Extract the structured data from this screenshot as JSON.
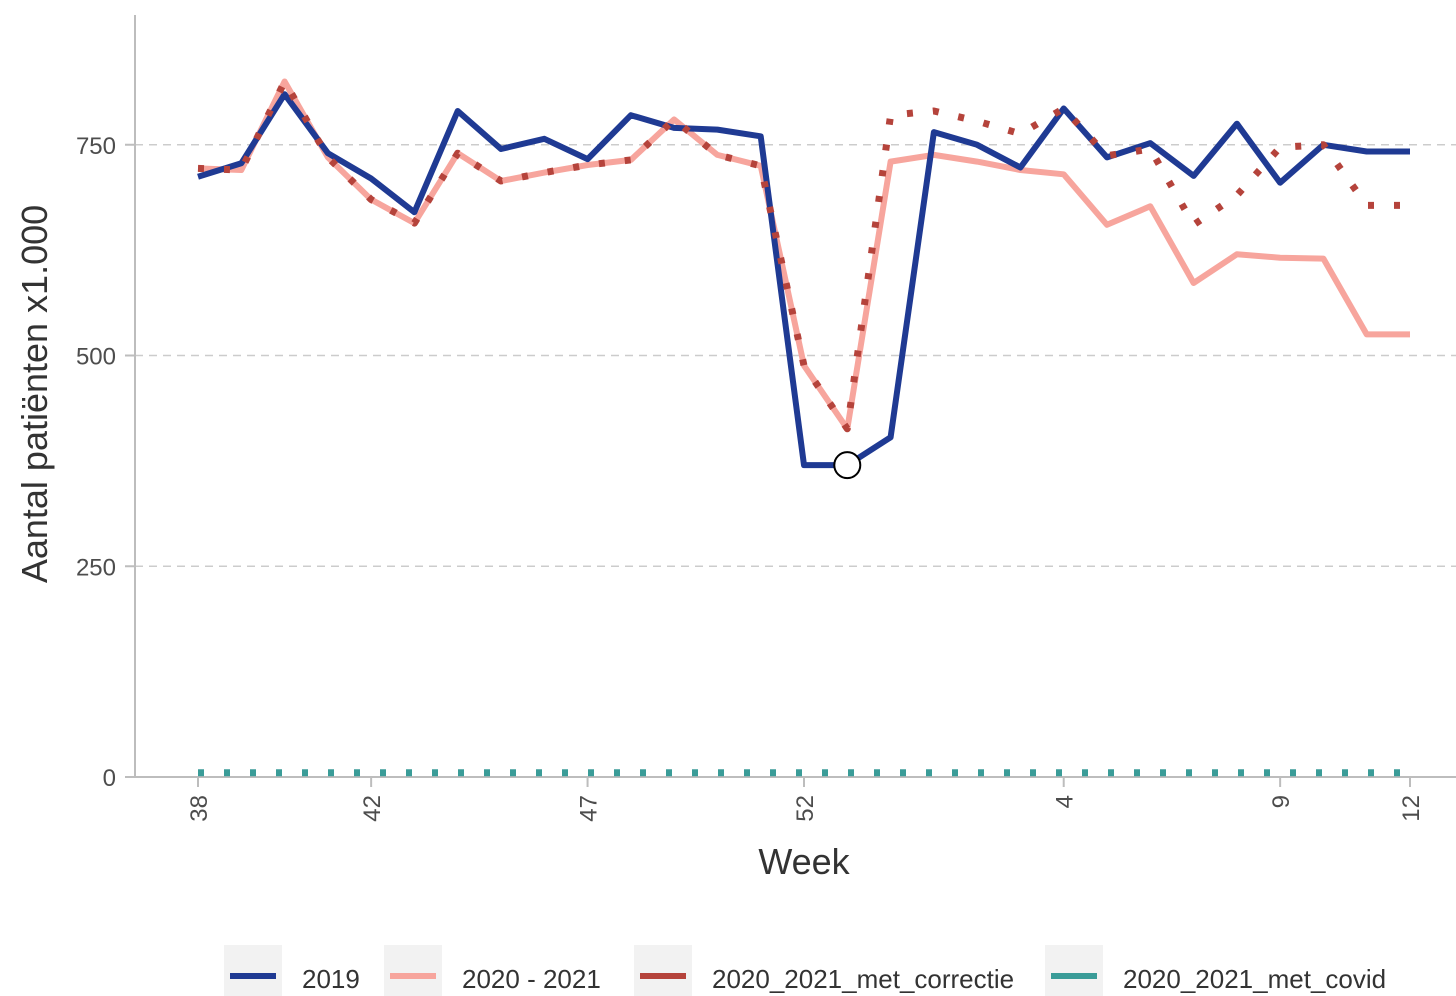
{
  "chart_data": {
    "type": "line",
    "xlabel": "Week",
    "ylabel": "Aantal patiënten x1.000",
    "ylim": [
      0,
      900
    ],
    "yticks": [
      0,
      250,
      500,
      750
    ],
    "grid": "horizontal dashed",
    "legend_position": "bottom",
    "weeks": [
      38,
      39,
      40,
      41,
      42,
      43,
      44,
      45,
      46,
      47,
      48,
      49,
      50,
      51,
      52,
      53,
      54,
      1,
      2,
      3,
      4,
      5,
      6,
      7,
      8,
      9,
      10,
      11,
      12
    ],
    "x_tick_labels": [
      "38",
      "42",
      "47",
      "52",
      "4",
      "9",
      "12"
    ],
    "highlighted_point": {
      "week": 53,
      "series": "2019",
      "value": 370
    },
    "series": [
      {
        "name": "2019",
        "color": "#1f3a93",
        "style": "solid",
        "values": [
          712,
          728,
          810,
          740,
          710,
          670,
          790,
          745,
          757,
          733,
          785,
          770,
          768,
          760,
          370,
          370,
          403,
          765,
          750,
          723,
          793,
          735,
          752,
          713,
          775,
          705,
          750,
          742,
          742
        ]
      },
      {
        "name": "2020 - 2021",
        "color": "#f7a59d",
        "style": "solid",
        "values": [
          722,
          720,
          825,
          735,
          685,
          657,
          740,
          707,
          717,
          726,
          732,
          780,
          738,
          725,
          488,
          413,
          730,
          738,
          730,
          720,
          715,
          655,
          677,
          586,
          620,
          616,
          615,
          525,
          525
        ]
      },
      {
        "name": "2020_2021_met_correctie",
        "color": "#b5433b",
        "style": "dotted",
        "values": [
          722,
          720,
          825,
          735,
          685,
          657,
          740,
          707,
          717,
          726,
          732,
          780,
          738,
          725,
          488,
          413,
          785,
          790,
          778,
          763,
          793,
          737,
          745,
          655,
          690,
          747,
          750,
          678,
          678
        ]
      },
      {
        "name": "2020_2021_met_covid",
        "color": "#3a9c98",
        "style": "dotted",
        "values": [
          5,
          5,
          5,
          5,
          5,
          5,
          5,
          5,
          5,
          5,
          5,
          5,
          5,
          5,
          5,
          5,
          5,
          5,
          5,
          5,
          5,
          5,
          5,
          5,
          5,
          5,
          5,
          5,
          5
        ]
      }
    ]
  }
}
